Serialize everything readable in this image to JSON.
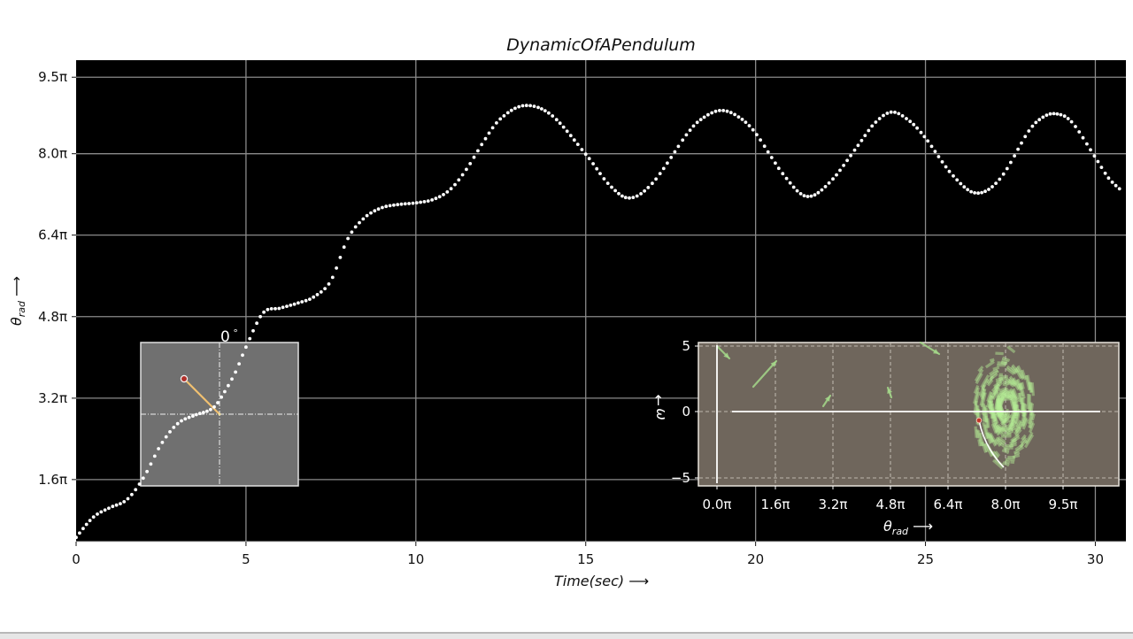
{
  "chart_data": {
    "type": "scatter",
    "title": "DynamicOfAPendulum",
    "xlabel": "Time(sec) ⟶",
    "ylabel": "θ°rad ⟶",
    "xlim": [
      0,
      30.9
    ],
    "ylim": [
      1.2,
      30.9
    ],
    "grid": true,
    "background": "#000000",
    "marker_color": "#ffffff",
    "x_ticks": [
      0,
      5,
      10,
      15,
      20,
      25,
      30
    ],
    "x_tick_labels": [
      "0",
      "5",
      "10",
      "15",
      "20",
      "25",
      "30"
    ],
    "y_ticks_rad": [
      5.03,
      10.05,
      15.08,
      20.11,
      25.13,
      29.85
    ],
    "y_tick_labels": [
      "1.6π",
      "3.2π",
      "4.8π",
      "6.4π",
      "8.0π",
      "9.5π"
    ],
    "series": [
      {
        "name": "theta",
        "x": [
          0,
          0.5,
          1.0,
          1.5,
          2.0,
          2.5,
          3.0,
          3.5,
          4.0,
          4.3,
          4.7,
          5.0,
          5.5,
          6.0,
          6.5,
          7.0,
          7.5,
          8.0,
          8.5,
          9.0,
          9.5,
          10.0,
          10.5,
          11.0,
          11.5,
          12.0,
          12.5,
          13.2,
          14.0,
          15.0,
          15.7,
          16.3,
          17.0,
          18.0,
          18.5,
          19.0,
          19.5,
          20.0,
          20.8,
          21.5,
          22.2,
          23.0,
          23.5,
          24.0,
          24.5,
          25.0,
          25.8,
          26.5,
          27.2,
          28.0,
          28.4,
          28.8,
          29.3,
          30.0,
          30.4,
          30.8
        ],
        "y": [
          1.46,
          2.7,
          3.3,
          3.8,
          5.2,
          7.2,
          8.5,
          9.0,
          9.4,
          10.2,
          11.7,
          13.2,
          15.3,
          15.6,
          15.9,
          16.3,
          17.3,
          19.9,
          21.2,
          21.8,
          22.0,
          22.1,
          22.3,
          22.9,
          24.2,
          25.9,
          27.3,
          28.1,
          27.5,
          25.1,
          23.2,
          22.4,
          23.4,
          26.4,
          27.4,
          27.8,
          27.4,
          26.4,
          23.9,
          22.5,
          23.4,
          25.6,
          27.0,
          27.7,
          27.2,
          26.1,
          23.8,
          22.7,
          23.6,
          26.4,
          27.3,
          27.6,
          27.1,
          24.9,
          23.6,
          22.8
        ]
      }
    ],
    "insets": [
      {
        "name": "pendulum-animation",
        "type": "diagram",
        "label": "0°",
        "pivot_color": "#f5f5f5",
        "rod_color": "#f0c070",
        "bob_color": "#c0392b",
        "background": "#6e6e6e"
      },
      {
        "name": "phase-portrait",
        "type": "quiver",
        "xlabel": "θ°rad ⟶",
        "ylabel": "ω ⟶",
        "x_tick_labels": [
          "0.0π",
          "1.6π",
          "3.2π",
          "4.8π",
          "6.4π",
          "8.0π",
          "9.5π"
        ],
        "y_ticks": [
          5,
          0,
          -5
        ],
        "y_tick_labels": [
          "5",
          "0",
          "−5"
        ],
        "background": "#6f665c",
        "arrow_color": "#a5d88a",
        "spiral_center_theta_pi": 8.0,
        "spiral_center_omega": 0
      }
    ]
  },
  "labels": {
    "title": "DynamicOfAPendulum",
    "xlabel": "Time(sec)",
    "ylabel_theta": "θ",
    "ylabel_sub": "rad",
    "inset_angle": "0",
    "omega": "ω",
    "phase_xlabel_theta": "θ",
    "phase_xlabel_sub": "rad"
  }
}
